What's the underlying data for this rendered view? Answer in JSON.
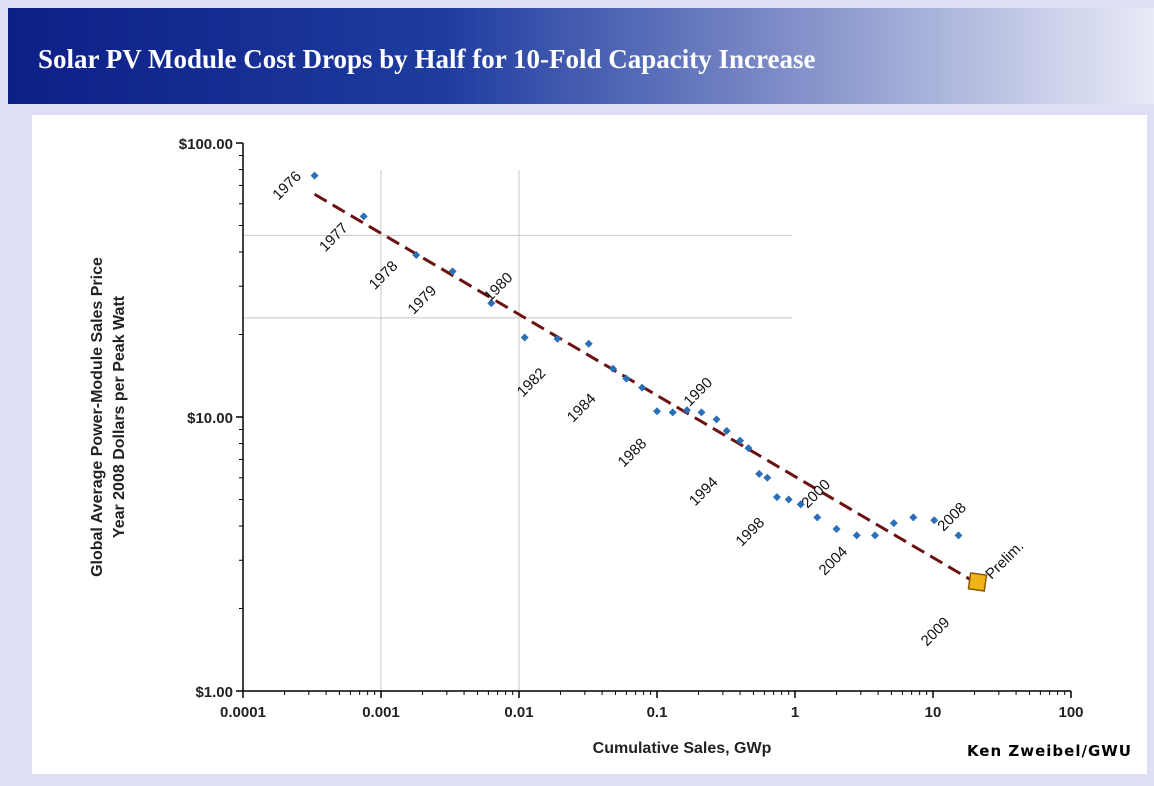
{
  "slide": {
    "title": "Solar PV Module Cost Drops by Half for 10-Fold Capacity Increase"
  },
  "chart_data": {
    "type": "scatter",
    "x_scale": "log",
    "y_scale": "log",
    "xlabel": "Cumulative Sales, GWp",
    "ylabel_lines": [
      "Global Average Power-Module Sales Price",
      "Year 2008 Dollars per Peak Watt"
    ],
    "xlim": [
      0.0001,
      100
    ],
    "ylim": [
      1,
      100
    ],
    "x_tick_labels": [
      "0.0001",
      "0.001",
      "0.01",
      "0.1",
      "1",
      "10",
      "100"
    ],
    "y_tick_labels": [
      "$1.00",
      "$10.00",
      "$100.00"
    ],
    "series": [
      {
        "points": [
          {
            "x": 0.00033,
            "y": 76
          },
          {
            "x": 0.00075,
            "y": 54
          },
          {
            "x": 0.0018,
            "y": 39
          },
          {
            "x": 0.0033,
            "y": 34
          },
          {
            "x": 0.0063,
            "y": 26
          },
          {
            "x": 0.011,
            "y": 19.5
          },
          {
            "x": 0.019,
            "y": 19.3
          },
          {
            "x": 0.032,
            "y": 18.5
          },
          {
            "x": 0.048,
            "y": 15
          },
          {
            "x": 0.06,
            "y": 13.8
          },
          {
            "x": 0.078,
            "y": 12.8
          },
          {
            "x": 0.1,
            "y": 10.5
          },
          {
            "x": 0.13,
            "y": 10.4
          },
          {
            "x": 0.165,
            "y": 10.6
          },
          {
            "x": 0.21,
            "y": 10.4
          },
          {
            "x": 0.27,
            "y": 9.8
          },
          {
            "x": 0.32,
            "y": 8.9
          },
          {
            "x": 0.4,
            "y": 8.2
          },
          {
            "x": 0.46,
            "y": 7.7
          },
          {
            "x": 0.55,
            "y": 6.2
          },
          {
            "x": 0.63,
            "y": 6.0
          },
          {
            "x": 0.74,
            "y": 5.1
          },
          {
            "x": 0.9,
            "y": 5.0
          },
          {
            "x": 1.1,
            "y": 4.8
          },
          {
            "x": 1.45,
            "y": 4.3
          },
          {
            "x": 2.0,
            "y": 3.9
          },
          {
            "x": 2.8,
            "y": 3.7
          },
          {
            "x": 3.8,
            "y": 3.7
          },
          {
            "x": 5.2,
            "y": 4.1
          },
          {
            "x": 7.2,
            "y": 4.3
          },
          {
            "x": 10.2,
            "y": 4.2
          },
          {
            "x": 15.3,
            "y": 3.7
          }
        ]
      }
    ],
    "highlight_point": {
      "x": 21,
      "y": 2.5,
      "label": "Prelim."
    },
    "trend_line": {
      "from": {
        "x": 0.00033,
        "y": 65
      },
      "to": {
        "x": 20,
        "y": 2.5
      },
      "style": "dashed"
    },
    "year_labels": [
      {
        "text": "1976",
        "x": 0.00022,
        "y": 68
      },
      {
        "text": "1977",
        "x": 0.00048,
        "y": 44
      },
      {
        "text": "1978",
        "x": 0.0011,
        "y": 32
      },
      {
        "text": "1979",
        "x": 0.0021,
        "y": 26
      },
      {
        "text": "1980",
        "x": 0.0075,
        "y": 29
      },
      {
        "text": "1982",
        "x": 0.013,
        "y": 13
      },
      {
        "text": "1984",
        "x": 0.03,
        "y": 10.5
      },
      {
        "text": "1988",
        "x": 0.07,
        "y": 7.2
      },
      {
        "text": "1990",
        "x": 0.21,
        "y": 12
      },
      {
        "text": "1994",
        "x": 0.23,
        "y": 5.2
      },
      {
        "text": "1998",
        "x": 0.5,
        "y": 3.7
      },
      {
        "text": "2000",
        "x": 1.5,
        "y": 5.1
      },
      {
        "text": "2004",
        "x": 2.0,
        "y": 2.9
      },
      {
        "text": "2008",
        "x": 14.5,
        "y": 4.2
      },
      {
        "text": "2009",
        "x": 11,
        "y": 1.6
      }
    ],
    "grid_lines": {
      "x_values": [
        0.001,
        0.01
      ],
      "y_values": [
        46,
        23
      ]
    },
    "colors": {
      "marker": "#2a6fb8",
      "trend": "#6b1111",
      "highlight_fill": "#f0b31a",
      "highlight_stroke": "#8a5a00"
    },
    "source_credit": "Ken Zweibel/GWU"
  }
}
